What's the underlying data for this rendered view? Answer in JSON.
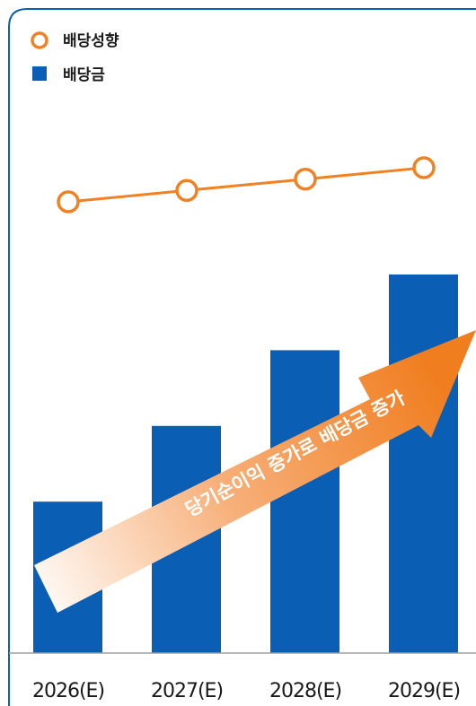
{
  "chart_data": {
    "type": "bar",
    "categories": [
      "2026(E)",
      "2027(E)",
      "2028(E)",
      "2029(E)"
    ],
    "series": [
      {
        "name": "배당금",
        "kind": "bar",
        "color": "#0a5fb4",
        "values": [
          40,
          60,
          80,
          100
        ]
      },
      {
        "name": "배당성향",
        "kind": "line",
        "color": "#f08224",
        "values": [
          55,
          58,
          61,
          64
        ]
      }
    ],
    "annotation": "당기순이익 증가로 배당금 증가",
    "legend_position": "top-left",
    "grid": false
  },
  "colors": {
    "frame": "#0a5fb4",
    "bar": "#0a5fb4",
    "line": "#f08224",
    "axis": "#9e9e9e",
    "arrow_start": "#fff6ee",
    "arrow_end": "#f07d1e"
  }
}
